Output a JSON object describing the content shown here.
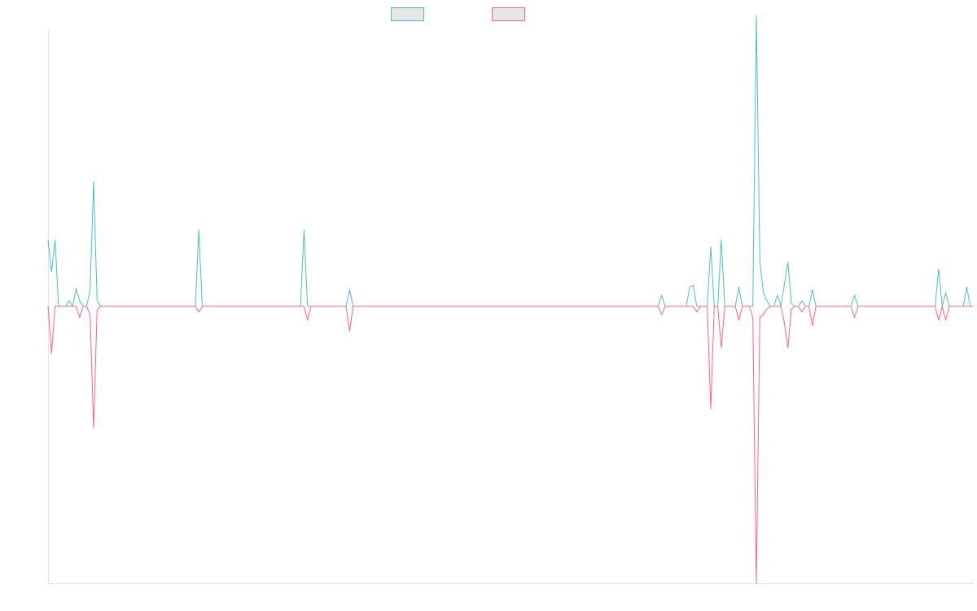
{
  "chart_data": {
    "type": "line",
    "title": "",
    "xlabel": "",
    "ylabel": "",
    "legend_position": "top-center",
    "grid": false,
    "x_count": 265,
    "ylim": [
      -100,
      100
    ],
    "series": [
      {
        "color": "#4bc0c0",
        "fill": "#e6e6e6",
        "values": {
          "0": 24,
          "1": 12.5,
          "2": 24,
          "3": 0,
          "5": 0,
          "6": 2,
          "7": 0,
          "8": 6.5,
          "9": 2,
          "10": 0,
          "12": 6,
          "13": 45,
          "14": 2,
          "15": 0,
          "25": 0,
          "43": 27.5,
          "44": 0,
          "49": 0,
          "73": 27.5,
          "74": 0,
          "86": 6,
          "87": 0,
          "120": 0,
          "175": 4,
          "176": 0,
          "183": 7,
          "184": 7.5,
          "185": 0,
          "189": 21.5,
          "190": 0,
          "192": 24,
          "193": 0,
          "196": 0,
          "197": 7,
          "198": 0,
          "201": 0,
          "202": 105,
          "203": 16.5,
          "204": 5,
          "205": 2,
          "206": 0,
          "208": 4,
          "209": 0,
          "210": 8,
          "211": 16,
          "212": 1,
          "213": 0,
          "215": 2,
          "216": 0,
          "218": 6,
          "219": 0,
          "230": 4,
          "231": 0,
          "254": 13.5,
          "255": 0,
          "256": 5,
          "257": 0,
          "262": 7,
          "263": 0
        }
      },
      {
        "color": "#ff6384",
        "fill": "#e6e6e6",
        "values": {
          "0": 0,
          "1": -17,
          "2": 0,
          "9": -4,
          "12": -3,
          "13": -44,
          "14": -1,
          "15": 0,
          "43": -2,
          "44": 0,
          "74": -5,
          "75": 0,
          "86": -9,
          "87": 0,
          "175": -3,
          "176": 0,
          "185": -2,
          "186": 0,
          "189": -37,
          "190": 0,
          "192": -15,
          "193": 0,
          "196": 0,
          "197": -5,
          "198": 0,
          "201": -4,
          "202": -100,
          "203": -4,
          "204": -3,
          "205": -1,
          "206": 0,
          "210": -6,
          "211": -15,
          "212": -1,
          "213": 0,
          "215": -2,
          "216": 0,
          "218": -7,
          "219": 0,
          "230": -4,
          "231": 0,
          "254": -5,
          "255": 0,
          "256": -5,
          "257": 0
        }
      }
    ]
  }
}
